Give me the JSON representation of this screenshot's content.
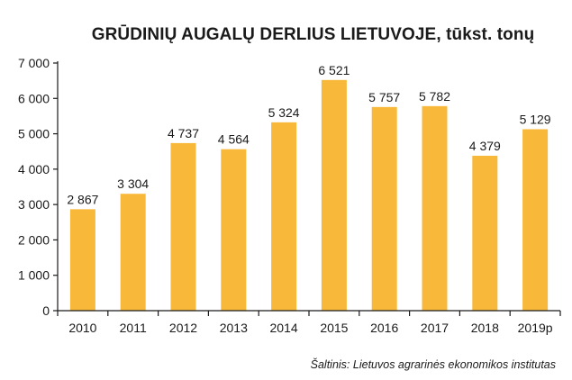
{
  "chart_data": {
    "type": "bar",
    "title": "GRŪDINIŲ AUGALŲ DERLIUS LIETUVOJE, tūkst. tonų",
    "categories": [
      "2010",
      "2011",
      "2012",
      "2013",
      "2014",
      "2015",
      "2016",
      "2017",
      "2018",
      "2019p"
    ],
    "values": [
      2867,
      3304,
      4737,
      4564,
      5324,
      6521,
      5757,
      5782,
      4379,
      5129
    ],
    "data_labels": [
      "2 867",
      "3 304",
      "4 737",
      "4 564",
      "5 324",
      "6 521",
      "5 757",
      "5 782",
      "4 379",
      "5 129"
    ],
    "yticks": [
      0,
      1000,
      2000,
      3000,
      4000,
      5000,
      6000,
      7000
    ],
    "ytick_labels": [
      "0",
      "1 000",
      "2 000",
      "3 000",
      "4 000",
      "5 000",
      "6 000",
      "7 000"
    ],
    "ylim": [
      0,
      7000
    ],
    "xlabel": "",
    "ylabel": "",
    "grid": false,
    "legend": "none",
    "bar_color": "#f8b93a",
    "source": "Šaltinis: Lietuvos agrarinės ekonomikos institutas"
  }
}
